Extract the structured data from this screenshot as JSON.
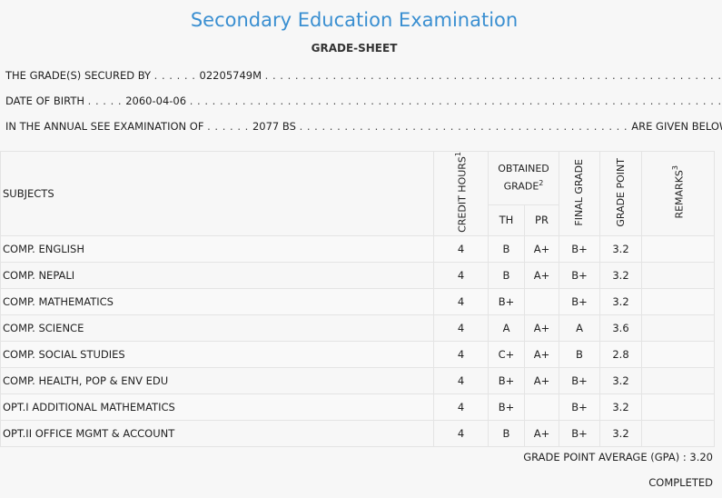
{
  "header": {
    "title": "Secondary Education Examination",
    "subtitle": "GRADE-SHEET"
  },
  "info": {
    "secured_by_label": "THE GRADE(S) SECURED BY",
    "secured_by_value": "02205749M",
    "dob_label": "DATE OF BIRTH",
    "dob_value": "2060-04-06",
    "exam_label": "IN THE ANNUAL SEE EXAMINATION OF",
    "exam_value": "2077 BS",
    "exam_suffix": "ARE GIVEN BELOW . . ."
  },
  "table": {
    "headers": {
      "subjects": "SUBJECTS",
      "credit_hours": "CREDIT HOURS",
      "credit_sup": "1",
      "obtained_grade": "OBTAINED GRADE",
      "obtained_sup": "2",
      "th": "TH",
      "pr": "PR",
      "final_grade": "FINAL GRADE",
      "grade_point": "GRADE POINT",
      "remarks": "REMARKS",
      "remarks_sup": "3"
    },
    "rows": [
      {
        "subject": "COMP. ENGLISH",
        "credit": "4",
        "th": "B",
        "pr": "A+",
        "final": "B+",
        "gp": "3.2",
        "remarks": ""
      },
      {
        "subject": "COMP. NEPALI",
        "credit": "4",
        "th": "B",
        "pr": "A+",
        "final": "B+",
        "gp": "3.2",
        "remarks": ""
      },
      {
        "subject": "COMP. MATHEMATICS",
        "credit": "4",
        "th": "B+",
        "pr": "",
        "final": "B+",
        "gp": "3.2",
        "remarks": ""
      },
      {
        "subject": "COMP. SCIENCE",
        "credit": "4",
        "th": "A",
        "pr": "A+",
        "final": "A",
        "gp": "3.6",
        "remarks": ""
      },
      {
        "subject": "COMP. SOCIAL STUDIES",
        "credit": "4",
        "th": "C+",
        "pr": "A+",
        "final": "B",
        "gp": "2.8",
        "remarks": ""
      },
      {
        "subject": "COMP. HEALTH, POP & ENV EDU",
        "credit": "4",
        "th": "B+",
        "pr": "A+",
        "final": "B+",
        "gp": "3.2",
        "remarks": ""
      },
      {
        "subject": "OPT.I ADDITIONAL MATHEMATICS",
        "credit": "4",
        "th": "B+",
        "pr": "",
        "final": "B+",
        "gp": "3.2",
        "remarks": ""
      },
      {
        "subject": "OPT.II OFFICE MGMT & ACCOUNT",
        "credit": "4",
        "th": "B",
        "pr": "A+",
        "final": "B+",
        "gp": "3.2",
        "remarks": ""
      }
    ]
  },
  "footer": {
    "gpa_label": "GRADE POINT AVERAGE (GPA) :",
    "gpa_value": "3.20",
    "status": "COMPLETED"
  }
}
